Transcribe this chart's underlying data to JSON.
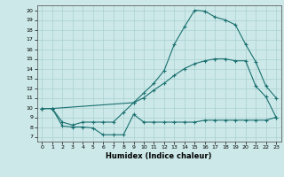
{
  "title": "",
  "xlabel": "Humidex (Indice chaleur)",
  "ylabel": "",
  "background_color": "#cce8e8",
  "grid_color": "#aad0d0",
  "line_color": "#1a7070",
  "x_ticks": [
    0,
    1,
    2,
    3,
    4,
    5,
    6,
    7,
    8,
    9,
    10,
    11,
    12,
    13,
    14,
    15,
    16,
    17,
    18,
    19,
    20,
    21,
    22,
    23
  ],
  "y_ticks": [
    7,
    8,
    9,
    10,
    11,
    12,
    13,
    14,
    15,
    16,
    17,
    18,
    19,
    20
  ],
  "xlim": [
    -0.5,
    23.5
  ],
  "ylim": [
    6.5,
    20.5
  ],
  "line1_x": [
    0,
    1,
    2,
    3,
    4,
    5,
    6,
    7,
    8,
    9,
    10,
    11,
    12,
    13,
    14,
    15,
    16,
    17,
    18,
    19,
    20,
    21,
    22,
    23
  ],
  "line1_y": [
    9.9,
    9.9,
    8.1,
    8.0,
    8.0,
    7.9,
    7.2,
    7.2,
    7.2,
    9.3,
    8.5,
    8.5,
    8.5,
    8.5,
    8.5,
    8.5,
    8.7,
    8.7,
    8.7,
    8.7,
    8.7,
    8.7,
    8.7,
    9.0
  ],
  "line2_x": [
    0,
    1,
    2,
    3,
    4,
    5,
    6,
    7,
    8,
    9,
    10,
    11,
    12,
    13,
    14,
    15,
    16,
    17,
    18,
    19,
    20,
    21,
    22,
    23
  ],
  "line2_y": [
    9.9,
    9.9,
    8.5,
    8.2,
    8.5,
    8.5,
    8.5,
    8.5,
    9.5,
    10.5,
    11.0,
    11.8,
    12.5,
    13.3,
    14.0,
    14.5,
    14.8,
    15.0,
    15.0,
    14.8,
    14.8,
    12.2,
    11.1,
    9.0
  ],
  "line3_x": [
    0,
    1,
    9,
    10,
    11,
    12,
    13,
    14,
    15,
    16,
    17,
    18,
    19,
    20,
    21,
    22,
    23
  ],
  "line3_y": [
    9.9,
    9.9,
    10.5,
    11.5,
    12.5,
    13.8,
    16.5,
    18.3,
    20.0,
    19.9,
    19.3,
    19.0,
    18.5,
    16.5,
    14.7,
    12.2,
    11.0
  ]
}
